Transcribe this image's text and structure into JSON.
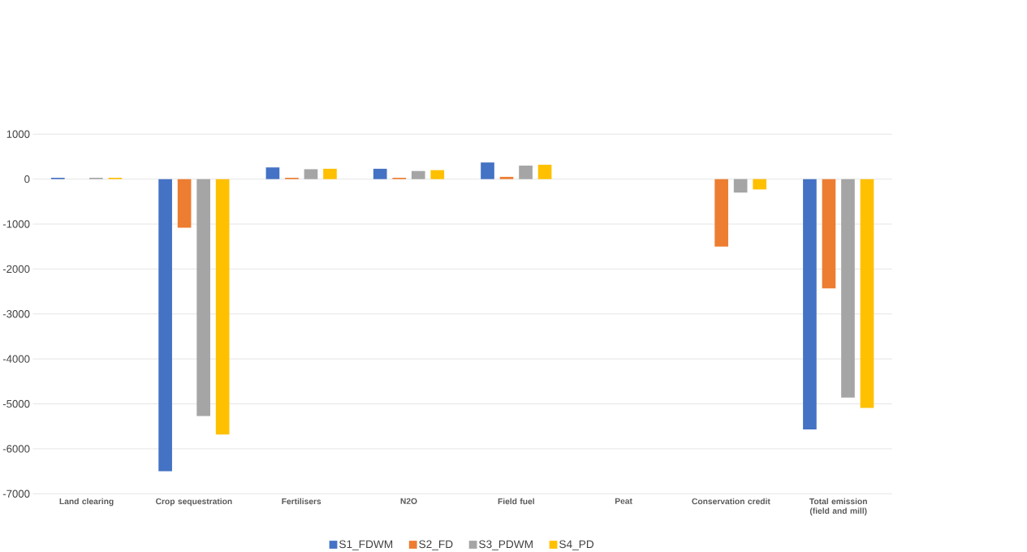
{
  "chart_data": {
    "type": "bar",
    "categories": [
      "Land clearing",
      "Crop sequestration",
      "Fertilisers",
      "N2O",
      "Field fuel",
      "Peat",
      "Conservation credit",
      "Total emission (field and mill)"
    ],
    "series": [
      {
        "name": "S1_FDWM",
        "color": "#4472c4",
        "values": [
          30,
          -6500,
          260,
          230,
          370,
          0,
          0,
          -5570
        ]
      },
      {
        "name": "S2_FD",
        "color": "#ed7d31",
        "values": [
          0,
          -1080,
          30,
          30,
          50,
          0,
          -1500,
          -2430
        ]
      },
      {
        "name": "S3_PDWM",
        "color": "#a5a5a5",
        "values": [
          30,
          -5270,
          220,
          180,
          300,
          0,
          -300,
          -4860
        ]
      },
      {
        "name": "S4_PD",
        "color": "#ffc000",
        "values": [
          30,
          -5680,
          230,
          200,
          320,
          0,
          -230,
          -5090
        ]
      }
    ],
    "ylim": [
      -7000,
      1000
    ],
    "yticks": [
      -7000,
      -6000,
      -5000,
      -4000,
      -3000,
      -2000,
      -1000,
      0,
      1000
    ],
    "grid": "y",
    "legend": "bottom"
  }
}
